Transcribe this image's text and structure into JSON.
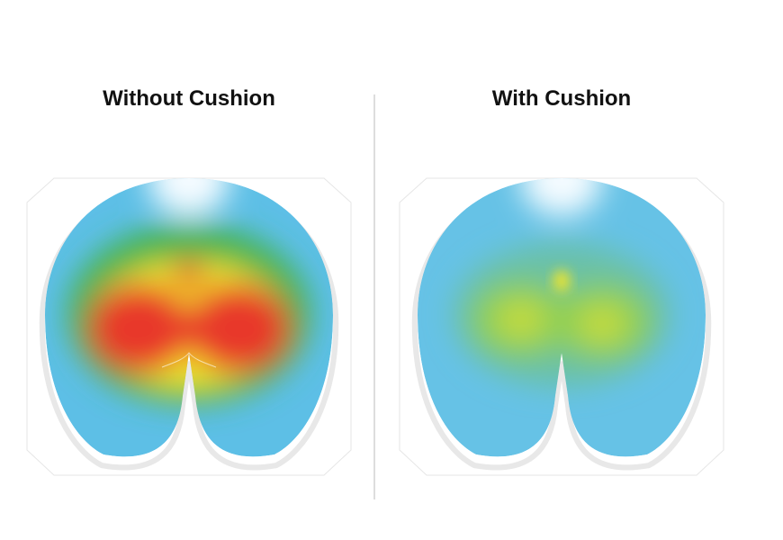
{
  "panels": [
    {
      "title": "Without Cushion"
    },
    {
      "title": "With Cushion"
    }
  ]
}
